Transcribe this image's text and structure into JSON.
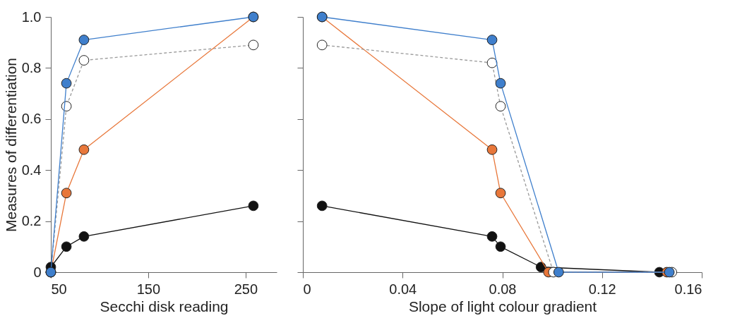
{
  "chart_data": [
    {
      "type": "line",
      "xlabel": "Secchi disk reading",
      "ylabel": "Measures of differentiation",
      "xlim": [
        50,
        282
      ],
      "xticks": [
        50,
        150,
        250
      ],
      "ylim": [
        0,
        1
      ],
      "yticks": [
        0,
        0.2,
        0.4,
        0.6,
        0.8,
        {
          "value": 1,
          "label": "1.0"
        }
      ],
      "grid": false,
      "marker": "circle",
      "series": [
        {
          "color": "#ffffff",
          "line_style": "dashed",
          "x": [
            50,
            66,
            84,
            258
          ],
          "values": [
            0,
            0.65,
            0.83,
            0.89
          ]
        },
        {
          "color": "#e8773a",
          "x": [
            50,
            66,
            84,
            258
          ],
          "values": [
            0,
            0.31,
            0.48,
            1.0
          ]
        },
        {
          "color": "#111111",
          "x": [
            50,
            66,
            84,
            258
          ],
          "values": [
            0.02,
            0.1,
            0.14,
            0.26
          ]
        },
        {
          "color": "#3f7fcc",
          "x": [
            50,
            66,
            84,
            258
          ],
          "values": [
            0,
            0.74,
            0.91,
            1.0
          ]
        }
      ]
    },
    {
      "type": "line",
      "xlabel": "Slope of light colour gradient",
      "xlim": [
        0,
        0.16
      ],
      "xticks": [
        0,
        0.04,
        0.08,
        0.12,
        0.16
      ],
      "ylim": [
        0,
        1
      ],
      "yticks": [
        0,
        0.2,
        0.4,
        0.6,
        0.8,
        1
      ],
      "tick_labels": "x",
      "grid": false,
      "marker": "circle",
      "series": [
        {
          "color": "#111111",
          "x": [
            0.0077,
            0.0759,
            0.0793,
            0.0955,
            0.143
          ],
          "values": [
            0.26,
            0.14,
            0.1,
            0.02,
            0
          ]
        },
        {
          "color": "#e8773a",
          "x": [
            0.0077,
            0.0759,
            0.0793,
            0.0985,
            0.146
          ],
          "values": [
            1.0,
            0.48,
            0.31,
            0,
            0
          ]
        },
        {
          "color": "#ffffff",
          "line_style": "dashed",
          "x": [
            0.0077,
            0.0759,
            0.0793,
            0.1005,
            0.148
          ],
          "values": [
            0.89,
            0.82,
            0.65,
            0,
            0
          ]
        },
        {
          "color": "#3f7fcc",
          "x": [
            0.0077,
            0.0759,
            0.0793,
            0.1026,
            0.147
          ],
          "values": [
            1.0,
            0.91,
            0.74,
            0,
            0
          ]
        }
      ]
    }
  ]
}
